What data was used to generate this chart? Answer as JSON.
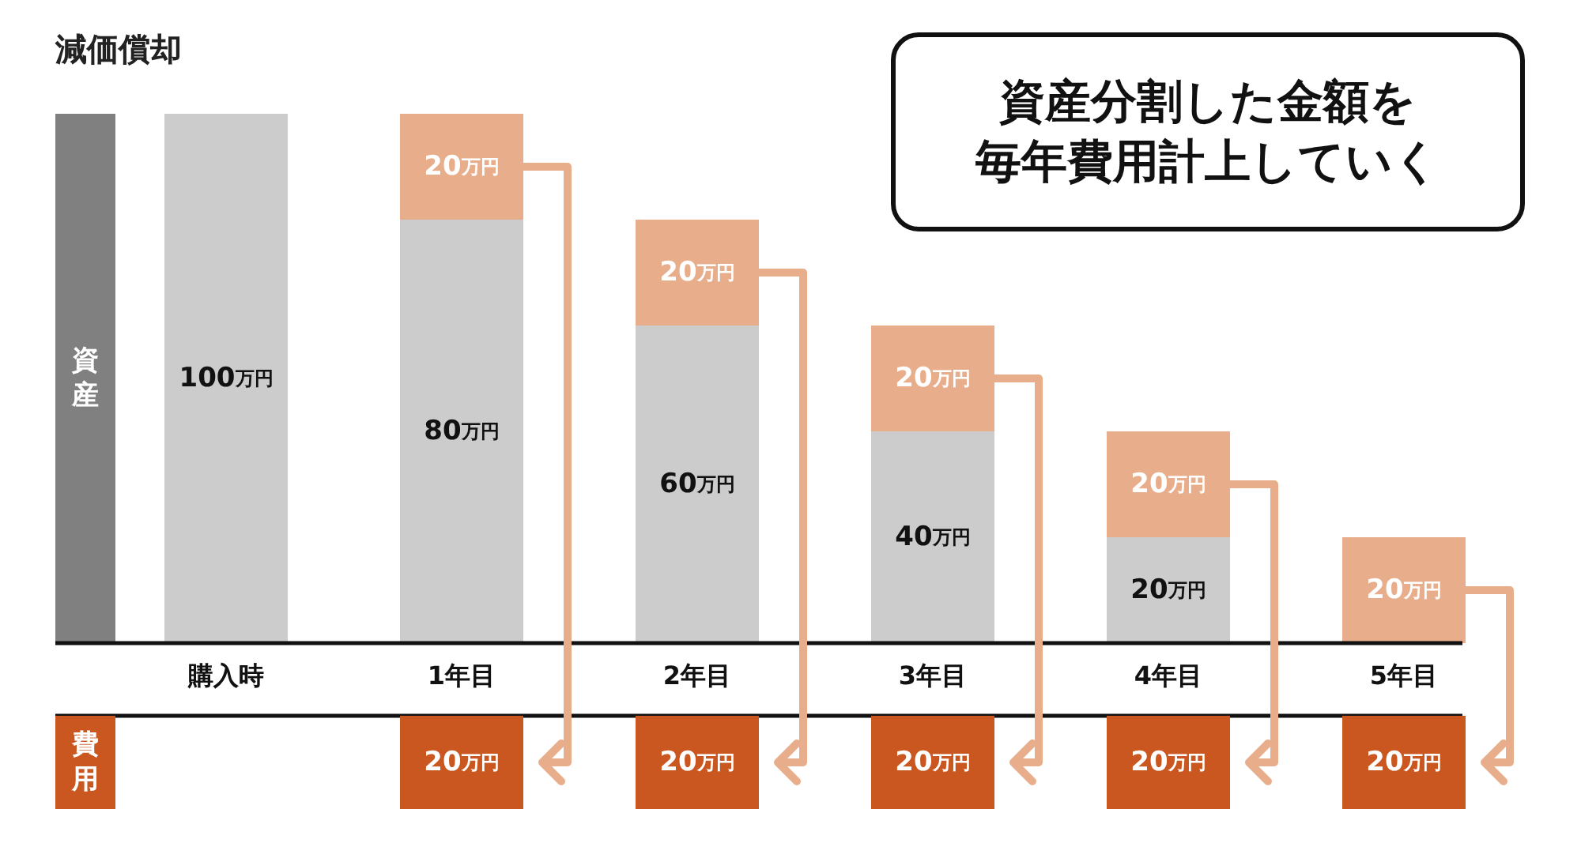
{
  "chart_data": [
    {
      "type": "bar",
      "title": "減価償却",
      "bands": [
        {
          "axis": "y",
          "from": 0,
          "to": 100,
          "label": "資産",
          "color": "#808080"
        }
      ],
      "stacked": true,
      "categories": [
        "購入時",
        "1年目",
        "2年目",
        "3年目",
        "4年目",
        "5年目"
      ],
      "series": [
        {
          "color": "#cccccc",
          "values": [
            100,
            80,
            60,
            40,
            20,
            null
          ],
          "value_labels": [
            "100万円",
            "80万円",
            "60万円",
            "40万円",
            "20万円",
            null
          ]
        },
        {
          "color": "#e8ad8a",
          "values": [
            null,
            20,
            20,
            20,
            20,
            20
          ],
          "value_labels": [
            null,
            "20万円",
            "20万円",
            "20万円",
            "20万円",
            "20万円"
          ]
        }
      ],
      "annotations": [
        "資産分割した金額を",
        "毎年費用計上していく"
      ]
    },
    {
      "type": "bar",
      "ylabel": "費用",
      "color": "#c9571f",
      "values": [
        null,
        20,
        20,
        20,
        20,
        20
      ],
      "value_labels": [
        null,
        "20万円",
        "20万円",
        "20万円",
        "20万円",
        "20万円"
      ]
    }
  ]
}
